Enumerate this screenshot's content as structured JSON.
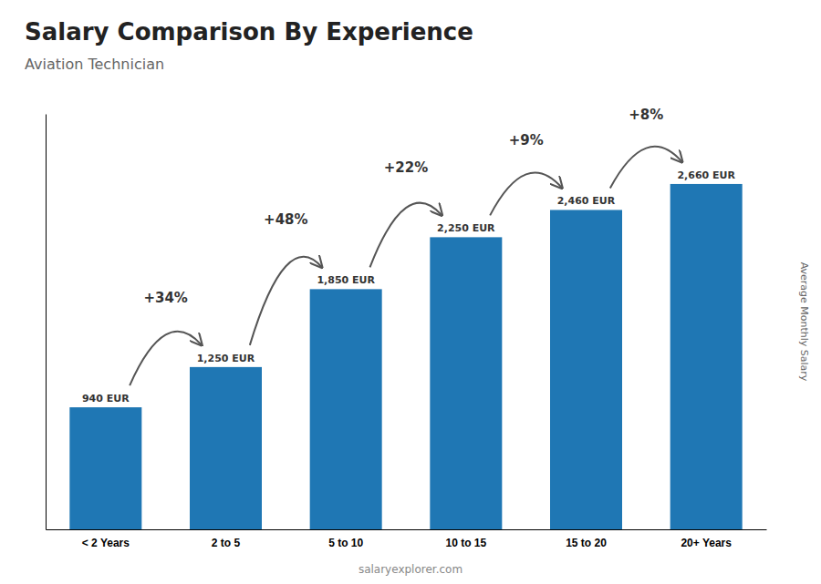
{
  "chart_data": {
    "type": "bar",
    "title": "Salary Comparison By Experience",
    "subtitle": "Aviation Technician",
    "ylabel": "Average Monthly Salary",
    "watermark": "salaryexplorer.com",
    "categories": [
      "< 2 Years",
      "2 to 5",
      "5 to 10",
      "10 to 15",
      "15 to 20",
      "20+ Years"
    ],
    "values": [
      940,
      1250,
      1850,
      2250,
      2460,
      2660
    ],
    "value_labels": [
      "940 EUR",
      "1,250 EUR",
      "1,850 EUR",
      "2,250 EUR",
      "2,460 EUR",
      "2,660 EUR"
    ],
    "data_labels": true,
    "pct_changes": [
      null,
      34,
      48,
      22,
      9,
      8
    ],
    "pct_change_labels": [
      null,
      "+34%",
      "+48%",
      "+22%",
      "+9%",
      "+8%"
    ],
    "ylim": [
      0,
      3200
    ],
    "tick_labels": "x"
  }
}
